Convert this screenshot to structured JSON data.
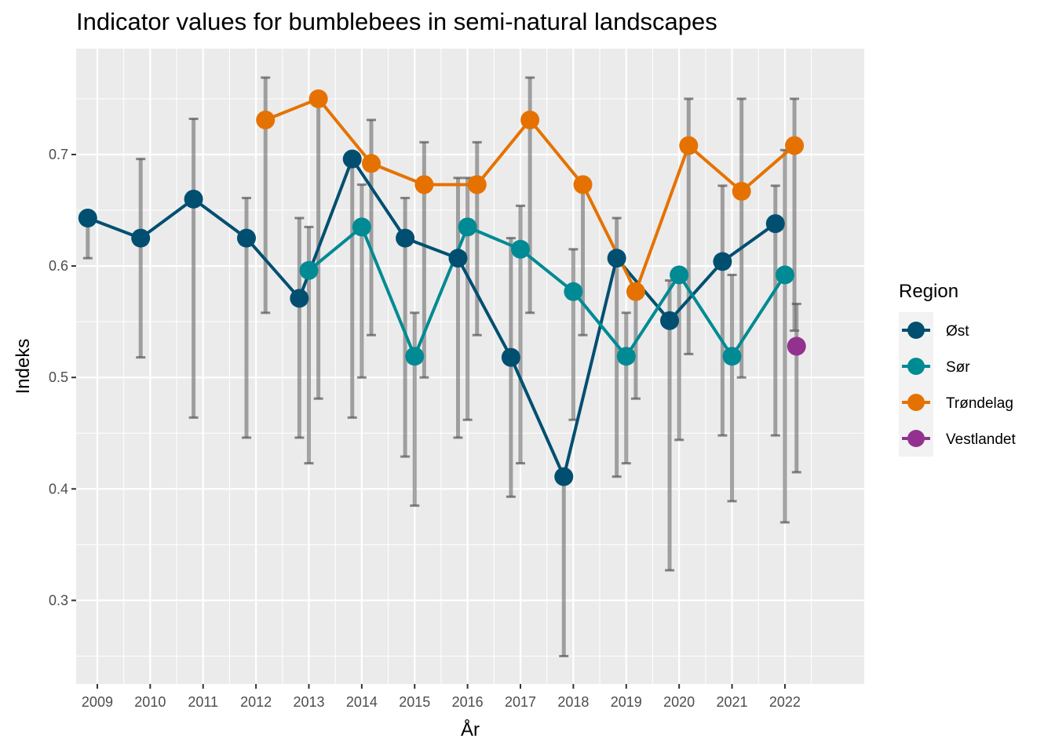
{
  "chart_data": {
    "type": "line",
    "title": "Indicator values for bumblebees in semi-natural landscapes",
    "xlabel": "År",
    "ylabel": "Indeks",
    "x": [
      2009,
      2010,
      2011,
      2012,
      2013,
      2014,
      2015,
      2016,
      2017,
      2018,
      2019,
      2020,
      2021,
      2022
    ],
    "x_ticks": [
      "2009",
      "2010",
      "2011",
      "2012",
      "2013",
      "2014",
      "2015",
      "2016",
      "2017",
      "2018",
      "2019",
      "2020",
      "2021",
      "2022"
    ],
    "y_ticks": [
      "0.3",
      "0.4",
      "0.5",
      "0.6",
      "0.7"
    ],
    "xlim": [
      2008.6,
      2023.5
    ],
    "ylim": [
      0.225,
      0.795
    ],
    "grid": true,
    "legend": {
      "title": "Region",
      "position": "right"
    },
    "series": [
      {
        "name": "Øst",
        "color": "#004f71",
        "dodge": -0.18,
        "points": [
          {
            "x": 2009,
            "y": 0.643,
            "lo": 0.607,
            "hi": 0.643
          },
          {
            "x": 2010,
            "y": 0.625,
            "lo": 0.518,
            "hi": 0.696
          },
          {
            "x": 2011,
            "y": 0.66,
            "lo": 0.464,
            "hi": 0.732
          },
          {
            "x": 2012,
            "y": 0.625,
            "lo": 0.446,
            "hi": 0.661
          },
          {
            "x": 2013,
            "y": 0.571,
            "lo": 0.446,
            "hi": 0.643
          },
          {
            "x": 2014,
            "y": 0.696,
            "lo": 0.464,
            "hi": 0.696
          },
          {
            "x": 2015,
            "y": 0.625,
            "lo": 0.429,
            "hi": 0.661
          },
          {
            "x": 2016,
            "y": 0.607,
            "lo": 0.446,
            "hi": 0.679
          },
          {
            "x": 2017,
            "y": 0.518,
            "lo": 0.393,
            "hi": 0.625
          },
          {
            "x": 2018,
            "y": 0.411,
            "lo": 0.25,
            "hi": 0.411
          },
          {
            "x": 2019,
            "y": 0.607,
            "lo": 0.411,
            "hi": 0.643
          },
          {
            "x": 2020,
            "y": 0.551,
            "lo": 0.327,
            "hi": 0.587
          },
          {
            "x": 2021,
            "y": 0.604,
            "lo": 0.448,
            "hi": 0.672
          },
          {
            "x": 2022,
            "y": 0.638,
            "lo": 0.448,
            "hi": 0.672
          }
        ]
      },
      {
        "name": "Sør",
        "color": "#008a93",
        "dodge": 0.0,
        "points": [
          {
            "x": 2013,
            "y": 0.596,
            "lo": 0.423,
            "hi": 0.635
          },
          {
            "x": 2014,
            "y": 0.635,
            "lo": 0.5,
            "hi": 0.673
          },
          {
            "x": 2015,
            "y": 0.519,
            "lo": 0.385,
            "hi": 0.558
          },
          {
            "x": 2016,
            "y": 0.635,
            "lo": 0.462,
            "hi": 0.679
          },
          {
            "x": 2017,
            "y": 0.615,
            "lo": 0.423,
            "hi": 0.654
          },
          {
            "x": 2018,
            "y": 0.577,
            "lo": 0.462,
            "hi": 0.615
          },
          {
            "x": 2019,
            "y": 0.519,
            "lo": 0.423,
            "hi": 0.558
          },
          {
            "x": 2020,
            "y": 0.592,
            "lo": 0.444,
            "hi": 0.587
          },
          {
            "x": 2021,
            "y": 0.519,
            "lo": 0.389,
            "hi": 0.592
          },
          {
            "x": 2022,
            "y": 0.592,
            "lo": 0.37,
            "hi": 0.704
          }
        ]
      },
      {
        "name": "Trøndelag",
        "color": "#e57200",
        "dodge": 0.18,
        "points": [
          {
            "x": 2012,
            "y": 0.731,
            "lo": 0.558,
            "hi": 0.769
          },
          {
            "x": 2013,
            "y": 0.75,
            "lo": 0.481,
            "hi": 0.75
          },
          {
            "x": 2014,
            "y": 0.692,
            "lo": 0.538,
            "hi": 0.731
          },
          {
            "x": 2015,
            "y": 0.673,
            "lo": 0.5,
            "hi": 0.711
          },
          {
            "x": 2016,
            "y": 0.673,
            "lo": 0.538,
            "hi": 0.711
          },
          {
            "x": 2017,
            "y": 0.731,
            "lo": 0.558,
            "hi": 0.769
          },
          {
            "x": 2018,
            "y": 0.673,
            "lo": 0.538,
            "hi": 0.673
          },
          {
            "x": 2019,
            "y": 0.577,
            "lo": 0.481,
            "hi": 0.577
          },
          {
            "x": 2020,
            "y": 0.708,
            "lo": 0.521,
            "hi": 0.75
          },
          {
            "x": 2021,
            "y": 0.667,
            "lo": 0.5,
            "hi": 0.75
          },
          {
            "x": 2022,
            "y": 0.708,
            "lo": 0.542,
            "hi": 0.75
          }
        ]
      },
      {
        "name": "Vestlandet",
        "color": "#93328e",
        "dodge": 0.22,
        "points": [
          {
            "x": 2022,
            "y": 0.528,
            "lo": 0.415,
            "hi": 0.566
          }
        ]
      }
    ]
  }
}
